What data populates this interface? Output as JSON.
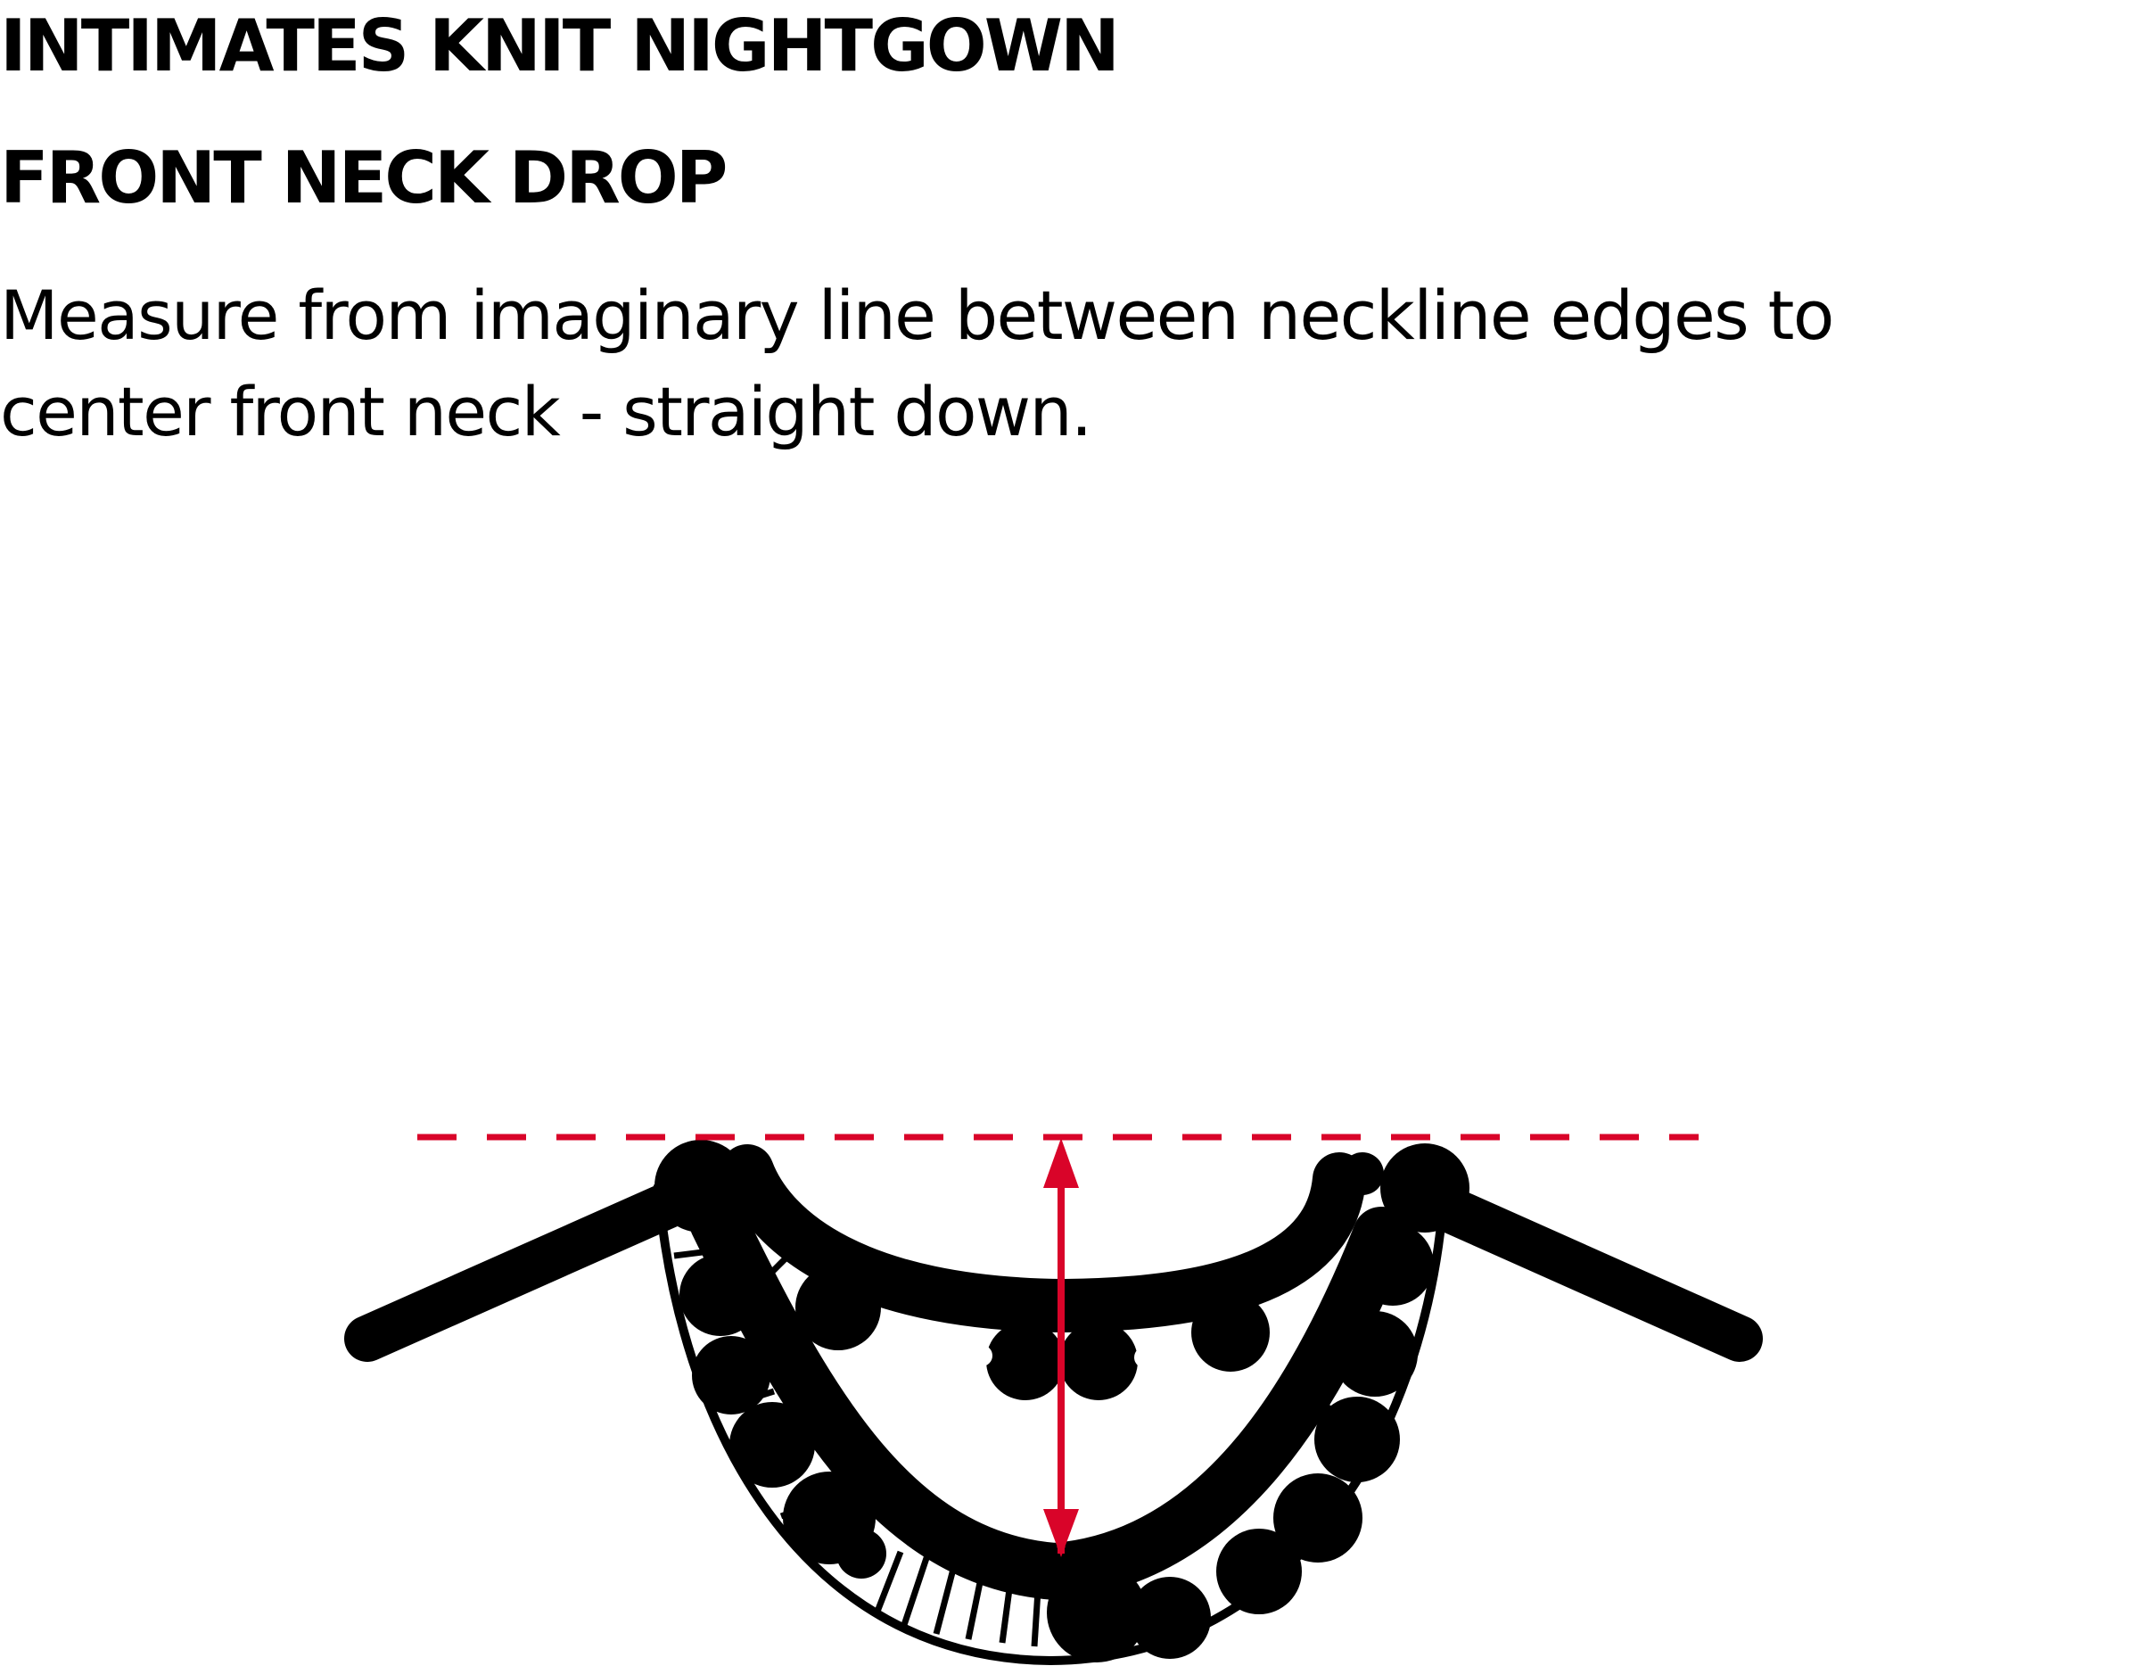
{
  "header": {
    "title": "INTIMATES KNIT NIGHTGOWN",
    "subtitle": "FRONT NECK DROP"
  },
  "instructions": {
    "text": "Measure from imaginary line between neckline edges to center front neck - straight down."
  },
  "diagram": {
    "colors": {
      "outline": "#000000",
      "measure_line": "#d90429",
      "background": "#ffffff"
    }
  }
}
